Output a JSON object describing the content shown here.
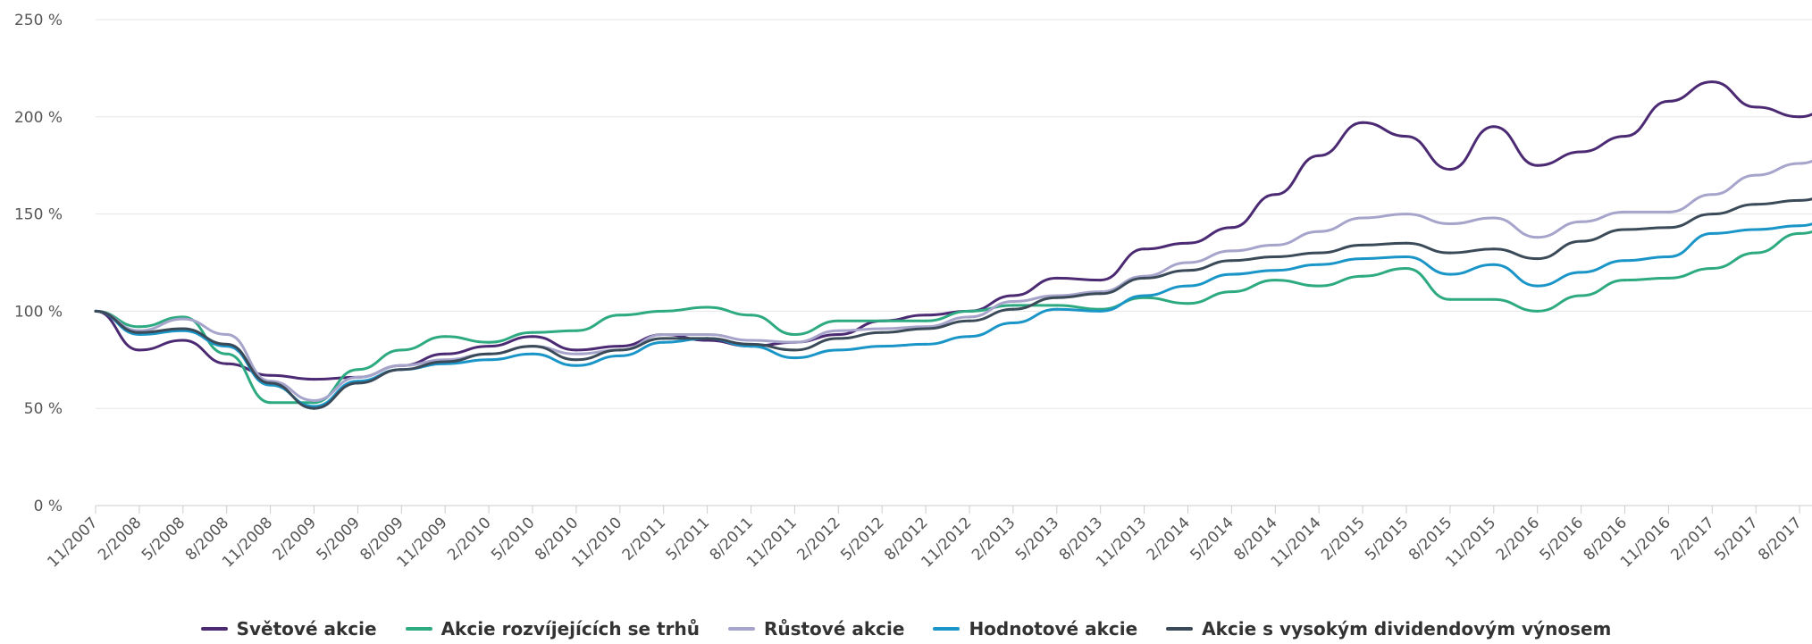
{
  "colors": {
    "grid": "#e6e6e6",
    "axis": "#cccccc",
    "tick_text": "#555555",
    "legend_text": "#333333"
  },
  "chart_data": {
    "type": "line",
    "title": "",
    "xlabel": "",
    "ylabel": "",
    "ylim": [
      0,
      250
    ],
    "yticks": [
      0,
      50,
      100,
      150,
      200,
      250
    ],
    "ytick_labels": [
      "0 %",
      "50 %",
      "100 %",
      "150 %",
      "200 %",
      "250 %"
    ],
    "grid": "horizontal",
    "legend": "bottom-center",
    "x_axis": {
      "start": "11/2007",
      "end": "11/2017",
      "tick_labels": [
        "11/2007",
        "2/2008",
        "5/2008",
        "8/2008",
        "11/2008",
        "2/2009",
        "5/2009",
        "8/2009",
        "11/2009",
        "2/2010",
        "5/2010",
        "8/2010",
        "11/2010",
        "2/2011",
        "5/2011",
        "8/2011",
        "11/2011",
        "2/2012",
        "5/2012",
        "8/2012",
        "11/2012",
        "2/2013",
        "5/2013",
        "8/2013",
        "11/2013",
        "2/2014",
        "5/2014",
        "8/2014",
        "11/2014",
        "2/2015",
        "5/2015",
        "8/2015",
        "11/2015",
        "2/2016",
        "5/2016",
        "8/2016",
        "11/2016",
        "2/2017",
        "5/2017",
        "8/2017"
      ]
    },
    "x": [
      "11/2007",
      "2/2008",
      "5/2008",
      "8/2008",
      "11/2008",
      "2/2009",
      "5/2009",
      "8/2009",
      "11/2009",
      "2/2010",
      "5/2010",
      "8/2010",
      "11/2010",
      "2/2011",
      "5/2011",
      "8/2011",
      "11/2011",
      "2/2012",
      "5/2012",
      "8/2012",
      "11/2012",
      "2/2013",
      "5/2013",
      "8/2013",
      "11/2013",
      "2/2014",
      "5/2014",
      "8/2014",
      "11/2014",
      "2/2015",
      "5/2015",
      "8/2015",
      "11/2015",
      "2/2016",
      "5/2016",
      "8/2016",
      "11/2016",
      "2/2017",
      "5/2017",
      "8/2017",
      "11/2017"
    ],
    "series": [
      {
        "name": "Světové akcie",
        "color": "#4b2a73",
        "values": [
          100,
          80,
          85,
          73,
          67,
          65,
          66,
          72,
          78,
          82,
          87,
          80,
          82,
          88,
          85,
          82,
          84,
          88,
          95,
          98,
          100,
          108,
          117,
          116,
          132,
          135,
          143,
          160,
          180,
          197,
          190,
          173,
          195,
          175,
          182,
          190,
          208,
          218,
          205,
          200,
          209
        ]
      },
      {
        "name": "Akcie rozvíjejících se trhů",
        "color": "#2eaa82",
        "values": [
          100,
          92,
          97,
          78,
          53,
          53,
          70,
          80,
          87,
          84,
          89,
          90,
          98,
          100,
          102,
          98,
          88,
          95,
          95,
          95,
          100,
          103,
          103,
          101,
          107,
          104,
          110,
          116,
          113,
          118,
          122,
          106,
          106,
          100,
          108,
          116,
          117,
          122,
          130,
          140,
          146
        ]
      },
      {
        "name": "Růstové akcie",
        "color": "#a6a4cb",
        "values": [
          100,
          90,
          96,
          88,
          64,
          54,
          66,
          72,
          75,
          78,
          82,
          78,
          80,
          88,
          88,
          85,
          84,
          90,
          91,
          92,
          97,
          105,
          108,
          110,
          118,
          125,
          131,
          134,
          141,
          148,
          150,
          145,
          148,
          138,
          146,
          151,
          151,
          160,
          170,
          176,
          184
        ]
      },
      {
        "name": "Hodnotové akcie",
        "color": "#1a95c7",
        "values": [
          100,
          88,
          90,
          82,
          62,
          51,
          64,
          70,
          73,
          75,
          78,
          72,
          77,
          84,
          86,
          82,
          76,
          80,
          82,
          83,
          87,
          94,
          101,
          100,
          108,
          113,
          119,
          121,
          124,
          127,
          128,
          119,
          124,
          113,
          120,
          126,
          128,
          140,
          142,
          144,
          150
        ]
      },
      {
        "name": "Akcie s vysokým dividendovým výnosem",
        "color": "#3b4a58",
        "values": [
          100,
          89,
          91,
          83,
          63,
          50,
          63,
          70,
          74,
          78,
          82,
          75,
          80,
          86,
          86,
          83,
          80,
          86,
          89,
          91,
          95,
          101,
          107,
          109,
          117,
          121,
          126,
          128,
          130,
          134,
          135,
          130,
          132,
          127,
          136,
          142,
          143,
          150,
          155,
          157,
          162
        ]
      }
    ]
  }
}
